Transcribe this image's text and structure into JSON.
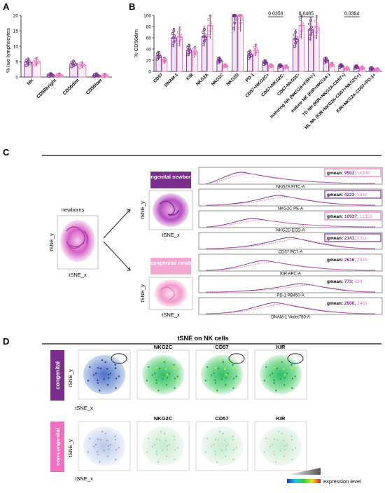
{
  "panels": {
    "A": {
      "letter": "A",
      "ylabel": "% live lymphocytes",
      "chart_data": {
        "type": "bar",
        "categories": [
          "NK",
          "CD56bright",
          "CD56dim",
          "CD56low"
        ],
        "series": [
          {
            "name": "",
            "values": [
              4.8,
              0.7,
              4.3,
              0.6
            ]
          },
          {
            "name": "",
            "values": [
              5.0,
              0.6,
              3.9,
              0.5
            ]
          }
        ],
        "yticks": [
          "0",
          "5",
          "10",
          "15",
          "20"
        ],
        "ylim": [
          0,
          20
        ]
      }
    },
    "B": {
      "letter": "B",
      "ylabel": "% CD56dim",
      "chart_data": {
        "type": "bar",
        "categories": [
          "CD57",
          "DNAM-1",
          "KIR",
          "NKG2A",
          "NKG2C",
          "NKG2D",
          "PD-1",
          "CD57+NKG2C+",
          "CD57+NKG2C-",
          "CD57-NKG2C-",
          "maturing NK (NKG2A+KIR+/-)",
          "mature NK (KIR+NKG2A-)",
          "TD NK (KIR+NKG2A-CD57+)",
          "ML NK (KIR+NKG2A-CD57+NKG2C+)",
          "KIR+NKG2A-CD57+PD-1+"
        ],
        "series": [
          {
            "name": "",
            "values": [
              28,
              60,
              38,
              62,
              20,
              99,
              30,
              16,
              10,
              58,
              75,
              20,
              10,
              8,
              5
            ]
          },
          {
            "name": "",
            "values": [
              20,
              62,
              35,
              82,
              10,
              99,
              38,
              10,
              8,
              82,
              80,
              12,
              5,
              6,
              3
            ]
          }
        ],
        "yticks": [
          "0",
          "20",
          "40",
          "60",
          "80",
          "100"
        ],
        "ylim": [
          0,
          100
        ],
        "pvalues": [
          {
            "label": "0.0356"
          },
          {
            "label": "0.0485"
          },
          {
            "label": "0.0394"
          }
        ]
      }
    },
    "C": {
      "letter": "C",
      "newborns_label": "newborns",
      "tsne_x": "tSNE_x",
      "tsne_y": "tSNE_y",
      "congenital_label": "congenital newborns",
      "noncongenital_label": "non-congenital newborns",
      "histograms": [
        {
          "marker": "NKG2A FITC-A",
          "gmean_label": "gmean:",
          "v1": "9502",
          "v2": "14306",
          "boxed": "pink"
        },
        {
          "marker": "NKG2C PE-A",
          "gmean_label": "gmean:",
          "v1": "4223",
          "v2": "3337",
          "boxed": "purple"
        },
        {
          "marker": "NKG2D ECD-A",
          "gmean_label": "gmean:",
          "v1": "10937",
          "v2": "12353",
          "boxed": "pink"
        },
        {
          "marker": "CD57 PC7-A",
          "gmean_label": "gmean:",
          "v1": "2141",
          "v2": "1311",
          "boxed": "purple"
        },
        {
          "marker": "KIR APC-A",
          "gmean_label": "gmean:",
          "v1": "2516",
          "v2": "2315",
          "boxed": "none"
        },
        {
          "marker": "PD-1 PB450-A",
          "gmean_label": "gmean:",
          "v1": "773",
          "v2": "830",
          "boxed": "none"
        },
        {
          "marker": "DNAM-1 Violet780-A",
          "gmean_label": "gmean:",
          "v1": "2606",
          "v2": "2483",
          "boxed": "none"
        }
      ]
    },
    "D": {
      "letter": "D",
      "title": "tSNE on NK cells",
      "row1_label": "congenital",
      "row2_label": "non-congenital",
      "markers": [
        "NKG2C",
        "CD57",
        "KIR"
      ],
      "tsne_x": "tSNE_x",
      "tsne_y": "tSNE_y",
      "legend_label": "expression level"
    }
  },
  "colors": {
    "purple": "#7b2d8e",
    "pink": "#e879c0",
    "magenta": "#c2189b",
    "lightpink": "#f4b5d8"
  }
}
